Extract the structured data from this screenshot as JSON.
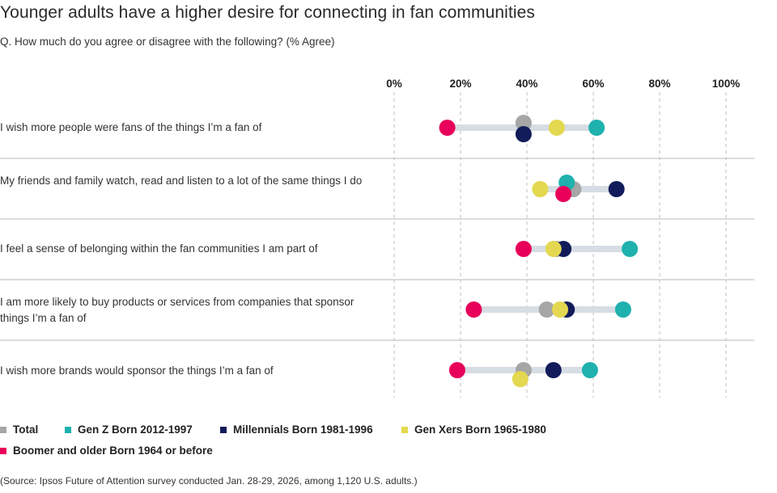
{
  "title": "Younger adults have a higher desire for connecting in fan communities",
  "subtitle": "Q. How much do you agree or disagree with the following? (% Agree)",
  "source": "(Source: Ipsos Future of Attention survey conducted Jan. 28-29, 2026, among 1,120 U.S. adults.)",
  "chart_data": {
    "type": "dot-range",
    "xlim": [
      0,
      100
    ],
    "x_ticks": [
      "0%",
      "20%",
      "40%",
      "60%",
      "80%",
      "100%"
    ],
    "x_tick_values": [
      0,
      20,
      40,
      60,
      80,
      100
    ],
    "grid": "vertical dashed",
    "legend_position": "bottom",
    "series": [
      {
        "key": "total",
        "name": "Total",
        "color": "#a6a6a6"
      },
      {
        "key": "genz",
        "name": "Gen Z Born 2012-1997",
        "color": "#1eb1ae"
      },
      {
        "key": "millennials",
        "name": "Millennials Born 1981-1996",
        "color": "#121c5a"
      },
      {
        "key": "genx",
        "name": "Gen Xers Born 1965-1980",
        "color": "#e3d84f"
      },
      {
        "key": "boomer",
        "name": "Boomer and older Born 1964 or before",
        "color": "#e8005a"
      }
    ],
    "categories": [
      "I wish more people were fans of the things I’m a fan of",
      "My friends and family watch, read and listen to a lot of the same things I do",
      "I feel a sense of belonging within the fan communities I am part of",
      "I am more likely to buy products or services from companies that sponsor things I’m a fan of",
      "I wish more brands would sponsor the things I’m a fan of"
    ],
    "values": {
      "total": [
        39,
        54,
        49,
        46,
        39
      ],
      "genz": [
        61,
        52,
        71,
        69,
        59
      ],
      "millennials": [
        39,
        67,
        51,
        52,
        48
      ],
      "genx": [
        49,
        44,
        48,
        50,
        38
      ],
      "boomer": [
        16,
        51,
        39,
        24,
        19
      ]
    },
    "range_bar_color": "#d6dde4"
  }
}
